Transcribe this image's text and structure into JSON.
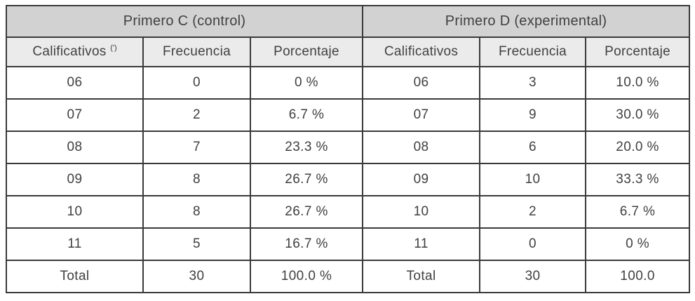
{
  "colors": {
    "group_header_bg": "#d2d2d2",
    "column_header_bg": "#ebebeb",
    "border": "#3a3a3a",
    "text": "#414042",
    "row_bg": "#ffffff"
  },
  "table": {
    "groups": [
      {
        "title": "Primero C (control)"
      },
      {
        "title": "Primero D (experimental)"
      }
    ],
    "column_headers": [
      {
        "label": "Calificativos",
        "footnote_marker": "(')"
      },
      {
        "label": "Frecuencia"
      },
      {
        "label": "Porcentaje"
      },
      {
        "label": "Calificativos"
      },
      {
        "label": "Frecuencia"
      },
      {
        "label": "Porcentaje"
      }
    ],
    "rows": [
      [
        "06",
        "0",
        "0 %",
        "06",
        "3",
        "10.0 %"
      ],
      [
        "07",
        "2",
        "6.7 %",
        "07",
        "9",
        "30.0 %"
      ],
      [
        "08",
        "7",
        "23.3 %",
        "08",
        "6",
        "20.0 %"
      ],
      [
        "09",
        "8",
        "26.7 %",
        "09",
        "10",
        "33.3 %"
      ],
      [
        "10",
        "8",
        "26.7 %",
        "10",
        "2",
        "6.7 %"
      ],
      [
        "11",
        "5",
        "16.7 %",
        "11",
        "0",
        "0 %"
      ],
      [
        "Total",
        "30",
        "100.0 %",
        "Total",
        "30",
        "100.0"
      ]
    ]
  }
}
